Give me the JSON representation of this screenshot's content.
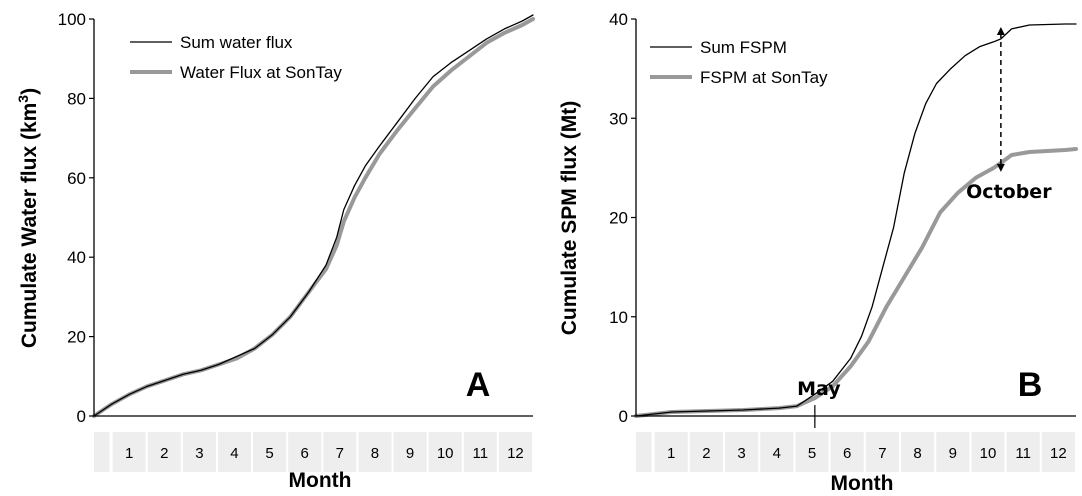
{
  "chart_data": [
    {
      "type": "line",
      "panel_label": "A",
      "xlabel": "Month",
      "ylabel": "Cumulate Water flux (km3)",
      "ylabel_main": "Cumulate Water flux (km",
      "ylabel_sup": "3",
      "ylabel_end": ")",
      "xlim": [
        0,
        12.3
      ],
      "ylim": [
        0,
        100
      ],
      "yticks": [
        0,
        20,
        40,
        60,
        80,
        100
      ],
      "month_labels": [
        "",
        "1",
        "2",
        "3",
        "4",
        "5",
        "6",
        "7",
        "8",
        "9",
        "10",
        "11",
        "12"
      ],
      "legend_position": "top-left",
      "grid": false,
      "series": [
        {
          "name": "Sum water flux",
          "color": "#000000",
          "x": [
            0,
            0.5,
            1,
            1.5,
            2,
            2.5,
            3,
            3.5,
            4,
            4.5,
            5,
            5.5,
            6,
            6.5,
            6.8,
            7,
            7.3,
            7.6,
            8,
            8.5,
            9,
            9.5,
            10,
            10.5,
            11,
            11.5,
            12,
            12.3
          ],
          "y": [
            0,
            3,
            5.5,
            7.5,
            9,
            10.5,
            11.5,
            13,
            15,
            17,
            20.5,
            25,
            31,
            38,
            45,
            52,
            58,
            63,
            68,
            74,
            80,
            85.5,
            89,
            92,
            95,
            97.5,
            99.5,
            101
          ]
        },
        {
          "name": "Water Flux at SonTay",
          "color": "#999999",
          "x": [
            0,
            0.5,
            1,
            1.5,
            2,
            2.5,
            3,
            3.5,
            4,
            4.5,
            5,
            5.5,
            6,
            6.5,
            6.8,
            7,
            7.3,
            7.6,
            8,
            8.5,
            9,
            9.5,
            10,
            10.5,
            11,
            11.5,
            12,
            12.3
          ],
          "y": [
            0,
            3,
            5.5,
            7.5,
            9,
            10.5,
            11.5,
            13,
            14.5,
            17,
            20.5,
            25,
            31,
            37,
            43,
            49,
            55,
            60,
            66,
            72,
            77.5,
            83,
            87,
            90.5,
            94,
            96.5,
            98.5,
            100
          ]
        }
      ]
    },
    {
      "type": "line",
      "panel_label": "B",
      "xlabel": "Month",
      "ylabel": "Cumulate SPM flux (Mt)",
      "xlim": [
        0,
        12.3
      ],
      "ylim": [
        0,
        40
      ],
      "yticks": [
        0,
        10,
        20,
        30,
        40
      ],
      "month_labels": [
        "",
        "1",
        "2",
        "3",
        "4",
        "5",
        "6",
        "7",
        "8",
        "9",
        "10",
        "11",
        "12"
      ],
      "legend_position": "top-left",
      "grid": false,
      "annotations": [
        {
          "text": "May",
          "x": 5
        },
        {
          "text": "October",
          "x": 10.2
        }
      ],
      "series": [
        {
          "name": "Sum FSPM",
          "color": "#000000",
          "x": [
            0,
            0.5,
            1,
            2,
            3,
            4,
            4.5,
            5,
            5.5,
            6,
            6.3,
            6.6,
            6.9,
            7.2,
            7.5,
            7.8,
            8.1,
            8.4,
            8.8,
            9.2,
            9.6,
            10,
            10.2,
            10.5,
            11,
            12,
            12.3
          ],
          "y": [
            0,
            0.2,
            0.4,
            0.5,
            0.6,
            0.8,
            1.0,
            2.2,
            3.5,
            5.8,
            8,
            11,
            15,
            19,
            24.5,
            28.5,
            31.5,
            33.5,
            35,
            36.3,
            37.2,
            37.7,
            38,
            39,
            39.4,
            39.5,
            39.5
          ]
        },
        {
          "name": "FSPM at SonTay",
          "color": "#999999",
          "x": [
            0,
            0.5,
            1,
            2,
            3,
            4,
            4.5,
            5,
            5.5,
            6,
            6.5,
            7,
            7.5,
            8,
            8.5,
            9,
            9.5,
            10,
            10.2,
            10.5,
            11,
            12,
            12.3
          ],
          "y": [
            0,
            0.2,
            0.4,
            0.5,
            0.6,
            0.8,
            1.0,
            1.8,
            3,
            5,
            7.5,
            11,
            14,
            17,
            20.5,
            22.5,
            24,
            25,
            25.5,
            26.3,
            26.6,
            26.8,
            26.9
          ]
        }
      ]
    }
  ]
}
